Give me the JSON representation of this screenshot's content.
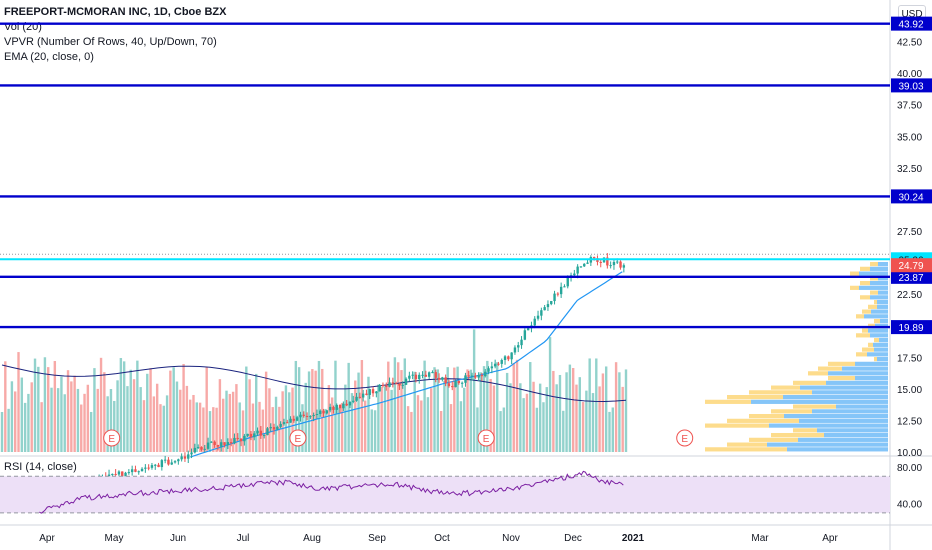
{
  "legend": {
    "title": "FREEPORT-MCMORAN INC, 1D, Cboe BZX",
    "volume": "Vol (20)",
    "vpvr": "VPVR (Number Of Rows, 40, Up/Down, 70)",
    "ema": "EMA (20, close, 0)"
  },
  "currency_button": "USD",
  "rsi_label": "RSI (14, close)",
  "earnings_marker": "E",
  "colors": {
    "up": "#26a69a",
    "down": "#ef5350",
    "level_line": "#0000cc",
    "cyan_line": "#00e5ff",
    "ema": "#2196f3",
    "volume_ma": "#1a237e",
    "rsi_line": "#7b1fa2",
    "rsi_band": "#ede0f7"
  },
  "chart_data": {
    "type": "candlestick",
    "title": "FREEPORT-MCMORAN INC, 1D, Cboe BZX",
    "x_tick_labels": [
      "Apr",
      "May",
      "Jun",
      "Jul",
      "Aug",
      "Sep",
      "Oct",
      "Nov",
      "Dec",
      "2021",
      "Mar",
      "Apr"
    ],
    "y_tick_labels": [
      "10.00",
      "12.50",
      "15.00",
      "17.50",
      "20.00",
      "22.50",
      "25.00",
      "27.50",
      "30.00",
      "32.50",
      "35.00",
      "37.50",
      "40.00",
      "42.50"
    ],
    "y_range": [
      10,
      45
    ],
    "price_levels": [
      {
        "label": "43.92",
        "value": 43.92,
        "color": "#0000cc"
      },
      {
        "label": "39.03",
        "value": 39.03,
        "color": "#0000cc"
      },
      {
        "label": "30.24",
        "value": 30.24,
        "color": "#0000cc"
      },
      {
        "label": "25.26",
        "value": 25.26,
        "color": "#00e5ff"
      },
      {
        "label": "23.87",
        "value": 23.87,
        "color": "#0000cc"
      },
      {
        "label": "19.89",
        "value": 19.89,
        "color": "#0000cc"
      }
    ],
    "last_price": {
      "label": "24.79",
      "value": 24.79,
      "color": "#ef5350"
    },
    "price_path": [
      {
        "date": "2020-03-25",
        "close": 7.2
      },
      {
        "date": "2020-04-15",
        "close": 7.6
      },
      {
        "date": "2020-05-05",
        "close": 8.5
      },
      {
        "date": "2020-05-25",
        "close": 9.4
      },
      {
        "date": "2020-06-10",
        "close": 10.6
      },
      {
        "date": "2020-06-25",
        "close": 11.0
      },
      {
        "date": "2020-07-10",
        "close": 11.8
      },
      {
        "date": "2020-07-25",
        "close": 13.0
      },
      {
        "date": "2020-08-10",
        "close": 13.4
      },
      {
        "date": "2020-08-25",
        "close": 14.8
      },
      {
        "date": "2020-09-10",
        "close": 15.5
      },
      {
        "date": "2020-09-25",
        "close": 16.3
      },
      {
        "date": "2020-10-05",
        "close": 15.4
      },
      {
        "date": "2020-10-20",
        "close": 16.2
      },
      {
        "date": "2020-11-01",
        "close": 17.4
      },
      {
        "date": "2020-11-10",
        "close": 19.6
      },
      {
        "date": "2020-11-20",
        "close": 21.5
      },
      {
        "date": "2020-11-30",
        "close": 23.5
      },
      {
        "date": "2020-12-08",
        "close": 25.2
      },
      {
        "date": "2020-12-18",
        "close": 25.1
      },
      {
        "date": "2020-12-28",
        "close": 24.79
      }
    ],
    "ema20_path": [
      {
        "date": "2020-06-01",
        "value": 9.6
      },
      {
        "date": "2020-07-01",
        "value": 11.2
      },
      {
        "date": "2020-08-01",
        "value": 12.6
      },
      {
        "date": "2020-09-01",
        "value": 13.9
      },
      {
        "date": "2020-10-01",
        "value": 15.4
      },
      {
        "date": "2020-11-01",
        "value": 16.6
      },
      {
        "date": "2020-11-20",
        "value": 18.8
      },
      {
        "date": "2020-12-05",
        "value": 22.0
      },
      {
        "date": "2020-12-28",
        "value": 24.4
      }
    ],
    "rsi_axis_labels": [
      "80.00",
      "40.00"
    ],
    "rsi_levels": [
      70,
      30
    ],
    "rsi_path": [
      {
        "date": "2020-03-20",
        "value": 31
      },
      {
        "date": "2020-04-10",
        "value": 46
      },
      {
        "date": "2020-05-10",
        "value": 52
      },
      {
        "date": "2020-06-10",
        "value": 56
      },
      {
        "date": "2020-07-15",
        "value": 64
      },
      {
        "date": "2020-08-05",
        "value": 56
      },
      {
        "date": "2020-09-05",
        "value": 62
      },
      {
        "date": "2020-10-05",
        "value": 50
      },
      {
        "date": "2020-11-01",
        "value": 55
      },
      {
        "date": "2020-11-25",
        "value": 66
      },
      {
        "date": "2020-12-08",
        "value": 74
      },
      {
        "date": "2020-12-18",
        "value": 63
      },
      {
        "date": "2020-12-28",
        "value": 62
      }
    ],
    "earnings_events": [
      "2020-04-24",
      "2020-07-23",
      "2020-10-22",
      "2021-01-26"
    ],
    "grid": false
  }
}
